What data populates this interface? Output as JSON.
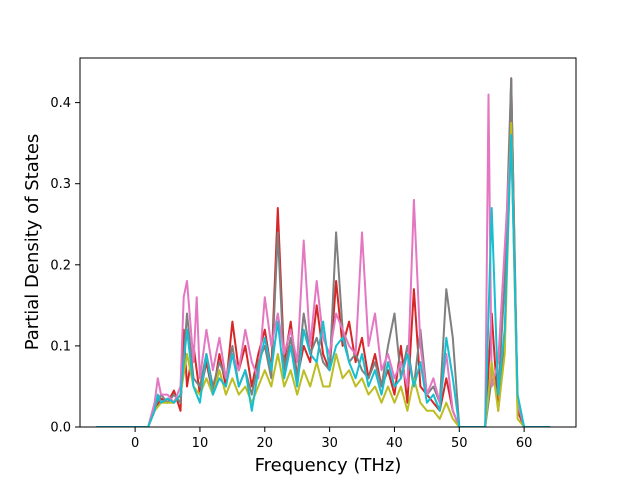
{
  "chart_data": {
    "type": "line",
    "title": "",
    "xlabel": "Frequency (THz)",
    "ylabel": "Partial Density of States",
    "xlim": [
      -8.5,
      68
    ],
    "ylim": [
      0,
      0.455
    ],
    "x_ticks": [
      0,
      10,
      20,
      30,
      40,
      50,
      60
    ],
    "y_ticks": [
      0.0,
      0.1,
      0.2,
      0.3,
      0.4
    ],
    "x_tick_labels": [
      "0",
      "10",
      "20",
      "30",
      "40",
      "50",
      "60"
    ],
    "y_tick_labels": [
      "0.0",
      "0.1",
      "0.2",
      "0.3",
      "0.4"
    ],
    "grid": false,
    "legend": null,
    "series": [
      {
        "color": "#d62728",
        "points": [
          [
            -6,
            0
          ],
          [
            2,
            0
          ],
          [
            3,
            0.02
          ],
          [
            4,
            0.035
          ],
          [
            5,
            0.03
          ],
          [
            6,
            0.045
          ],
          [
            7,
            0.02
          ],
          [
            7.5,
            0.12
          ],
          [
            8,
            0.05
          ],
          [
            9,
            0.1
          ],
          [
            10,
            0.04
          ],
          [
            11,
            0.08
          ],
          [
            12,
            0.04
          ],
          [
            13,
            0.09
          ],
          [
            14,
            0.05
          ],
          [
            15,
            0.13
          ],
          [
            16,
            0.07
          ],
          [
            17,
            0.1
          ],
          [
            18,
            0.05
          ],
          [
            19,
            0.09
          ],
          [
            20,
            0.12
          ],
          [
            21,
            0.07
          ],
          [
            22,
            0.27
          ],
          [
            23,
            0.08
          ],
          [
            24,
            0.13
          ],
          [
            25,
            0.06
          ],
          [
            26,
            0.1
          ],
          [
            27,
            0.08
          ],
          [
            28,
            0.15
          ],
          [
            29,
            0.09
          ],
          [
            30,
            0.07
          ],
          [
            31,
            0.18
          ],
          [
            32,
            0.1
          ],
          [
            33,
            0.13
          ],
          [
            34,
            0.08
          ],
          [
            35,
            0.11
          ],
          [
            36,
            0.06
          ],
          [
            37,
            0.09
          ],
          [
            38,
            0.05
          ],
          [
            39,
            0.07
          ],
          [
            40,
            0.04
          ],
          [
            41,
            0.1
          ],
          [
            42,
            0.03
          ],
          [
            43,
            0.17
          ],
          [
            44,
            0.05
          ],
          [
            45,
            0.04
          ],
          [
            46,
            0.03
          ],
          [
            47,
            0.02
          ],
          [
            48,
            0.06
          ],
          [
            49,
            0.02
          ],
          [
            50,
            0
          ],
          [
            54,
            0
          ],
          [
            55,
            0.14
          ],
          [
            56,
            0.02
          ],
          [
            57,
            0.1
          ],
          [
            58,
            0.43
          ],
          [
            59,
            0.02
          ],
          [
            60,
            0
          ],
          [
            64,
            0
          ]
        ]
      },
      {
        "color": "#7f7f7f",
        "points": [
          [
            -6,
            0
          ],
          [
            2,
            0
          ],
          [
            3,
            0.025
          ],
          [
            4,
            0.04
          ],
          [
            5,
            0.03
          ],
          [
            6,
            0.04
          ],
          [
            7,
            0.03
          ],
          [
            8,
            0.14
          ],
          [
            9,
            0.06
          ],
          [
            10,
            0.05
          ],
          [
            11,
            0.09
          ],
          [
            12,
            0.05
          ],
          [
            13,
            0.08
          ],
          [
            14,
            0.06
          ],
          [
            15,
            0.1
          ],
          [
            16,
            0.05
          ],
          [
            17,
            0.07
          ],
          [
            18,
            0.04
          ],
          [
            19,
            0.08
          ],
          [
            20,
            0.1
          ],
          [
            21,
            0.06
          ],
          [
            22,
            0.24
          ],
          [
            23,
            0.07
          ],
          [
            24,
            0.11
          ],
          [
            25,
            0.06
          ],
          [
            26,
            0.14
          ],
          [
            27,
            0.09
          ],
          [
            28,
            0.11
          ],
          [
            29,
            0.08
          ],
          [
            30,
            0.07
          ],
          [
            31,
            0.24
          ],
          [
            32,
            0.12
          ],
          [
            33,
            0.08
          ],
          [
            34,
            0.09
          ],
          [
            35,
            0.07
          ],
          [
            36,
            0.06
          ],
          [
            37,
            0.08
          ],
          [
            38,
            0.05
          ],
          [
            39,
            0.1
          ],
          [
            40,
            0.14
          ],
          [
            41,
            0.06
          ],
          [
            42,
            0.1
          ],
          [
            43,
            0.05
          ],
          [
            44,
            0.12
          ],
          [
            45,
            0.04
          ],
          [
            46,
            0.05
          ],
          [
            47,
            0.03
          ],
          [
            48,
            0.17
          ],
          [
            49,
            0.11
          ],
          [
            50,
            0
          ],
          [
            54,
            0
          ],
          [
            55,
            0.06
          ],
          [
            56,
            0.04
          ],
          [
            57,
            0.18
          ],
          [
            58,
            0.43
          ],
          [
            59,
            0.03
          ],
          [
            60,
            0
          ],
          [
            64,
            0
          ]
        ]
      },
      {
        "color": "#e377c2",
        "points": [
          [
            -6,
            0
          ],
          [
            2,
            0
          ],
          [
            3,
            0.03
          ],
          [
            3.5,
            0.06
          ],
          [
            4,
            0.04
          ],
          [
            5,
            0.04
          ],
          [
            6,
            0.03
          ],
          [
            7,
            0.05
          ],
          [
            7.5,
            0.16
          ],
          [
            8,
            0.18
          ],
          [
            9,
            0.08
          ],
          [
            9.5,
            0.16
          ],
          [
            10,
            0.06
          ],
          [
            11,
            0.12
          ],
          [
            12,
            0.07
          ],
          [
            13,
            0.11
          ],
          [
            14,
            0.06
          ],
          [
            15,
            0.09
          ],
          [
            16,
            0.07
          ],
          [
            17,
            0.12
          ],
          [
            18,
            0.08
          ],
          [
            19,
            0.06
          ],
          [
            20,
            0.16
          ],
          [
            21,
            0.1
          ],
          [
            22,
            0.14
          ],
          [
            23,
            0.09
          ],
          [
            24,
            0.12
          ],
          [
            25,
            0.08
          ],
          [
            26,
            0.23
          ],
          [
            27,
            0.1
          ],
          [
            28,
            0.18
          ],
          [
            29,
            0.11
          ],
          [
            30,
            0.09
          ],
          [
            31,
            0.14
          ],
          [
            32,
            0.12
          ],
          [
            33,
            0.1
          ],
          [
            34,
            0.09
          ],
          [
            35,
            0.24
          ],
          [
            36,
            0.1
          ],
          [
            37,
            0.14
          ],
          [
            38,
            0.07
          ],
          [
            39,
            0.09
          ],
          [
            40,
            0.06
          ],
          [
            41,
            0.08
          ],
          [
            42,
            0.05
          ],
          [
            43,
            0.28
          ],
          [
            44,
            0.1
          ],
          [
            45,
            0.04
          ],
          [
            46,
            0.06
          ],
          [
            47,
            0.03
          ],
          [
            48,
            0.09
          ],
          [
            49,
            0.02
          ],
          [
            50,
            0
          ],
          [
            54,
            0
          ],
          [
            54.5,
            0.41
          ],
          [
            55,
            0.05
          ],
          [
            56,
            0.08
          ],
          [
            57,
            0.22
          ],
          [
            58,
            0.36
          ],
          [
            59,
            0.03
          ],
          [
            60,
            0
          ],
          [
            64,
            0
          ]
        ]
      },
      {
        "color": "#bcbd22",
        "points": [
          [
            -6,
            0
          ],
          [
            2,
            0
          ],
          [
            3,
            0.02
          ],
          [
            4,
            0.03
          ],
          [
            5,
            0.03
          ],
          [
            6,
            0.03
          ],
          [
            7,
            0.04
          ],
          [
            8,
            0.09
          ],
          [
            9,
            0.05
          ],
          [
            10,
            0.04
          ],
          [
            11,
            0.06
          ],
          [
            12,
            0.04
          ],
          [
            13,
            0.07
          ],
          [
            14,
            0.04
          ],
          [
            15,
            0.06
          ],
          [
            16,
            0.04
          ],
          [
            17,
            0.05
          ],
          [
            18,
            0.03
          ],
          [
            19,
            0.05
          ],
          [
            20,
            0.07
          ],
          [
            21,
            0.05
          ],
          [
            22,
            0.09
          ],
          [
            23,
            0.05
          ],
          [
            24,
            0.07
          ],
          [
            25,
            0.04
          ],
          [
            26,
            0.07
          ],
          [
            27,
            0.05
          ],
          [
            28,
            0.08
          ],
          [
            29,
            0.05
          ],
          [
            30,
            0.05
          ],
          [
            31,
            0.09
          ],
          [
            32,
            0.06
          ],
          [
            33,
            0.07
          ],
          [
            34,
            0.05
          ],
          [
            35,
            0.06
          ],
          [
            36,
            0.04
          ],
          [
            37,
            0.05
          ],
          [
            38,
            0.03
          ],
          [
            39,
            0.05
          ],
          [
            40,
            0.03
          ],
          [
            41,
            0.05
          ],
          [
            42,
            0.02
          ],
          [
            43,
            0.06
          ],
          [
            44,
            0.03
          ],
          [
            45,
            0.02
          ],
          [
            46,
            0.02
          ],
          [
            47,
            0.01
          ],
          [
            48,
            0.03
          ],
          [
            49,
            0.01
          ],
          [
            50,
            0
          ],
          [
            54,
            0
          ],
          [
            55,
            0.08
          ],
          [
            56,
            0.02
          ],
          [
            57,
            0.09
          ],
          [
            58,
            0.375
          ],
          [
            59,
            0.01
          ],
          [
            60,
            0
          ],
          [
            64,
            0
          ]
        ]
      },
      {
        "color": "#17becf",
        "points": [
          [
            -6,
            0
          ],
          [
            2,
            0
          ],
          [
            3,
            0.02
          ],
          [
            3.5,
            0.04
          ],
          [
            4,
            0.03
          ],
          [
            5,
            0.035
          ],
          [
            6,
            0.03
          ],
          [
            7,
            0.04
          ],
          [
            8,
            0.12
          ],
          [
            9,
            0.05
          ],
          [
            10,
            0.03
          ],
          [
            11,
            0.09
          ],
          [
            12,
            0.04
          ],
          [
            13,
            0.06
          ],
          [
            14,
            0.05
          ],
          [
            15,
            0.09
          ],
          [
            16,
            0.05
          ],
          [
            17,
            0.07
          ],
          [
            18,
            0.02
          ],
          [
            19,
            0.07
          ],
          [
            20,
            0.11
          ],
          [
            21,
            0.07
          ],
          [
            22,
            0.13
          ],
          [
            23,
            0.06
          ],
          [
            24,
            0.1
          ],
          [
            25,
            0.05
          ],
          [
            26,
            0.12
          ],
          [
            27,
            0.09
          ],
          [
            28,
            0.08
          ],
          [
            29,
            0.13
          ],
          [
            30,
            0.07
          ],
          [
            31,
            0.1
          ],
          [
            32,
            0.11
          ],
          [
            33,
            0.08
          ],
          [
            34,
            0.06
          ],
          [
            35,
            0.09
          ],
          [
            36,
            0.05
          ],
          [
            37,
            0.07
          ],
          [
            38,
            0.04
          ],
          [
            39,
            0.08
          ],
          [
            40,
            0.05
          ],
          [
            41,
            0.06
          ],
          [
            42,
            0.09
          ],
          [
            43,
            0.05
          ],
          [
            44,
            0.08
          ],
          [
            45,
            0.03
          ],
          [
            46,
            0.04
          ],
          [
            47,
            0.02
          ],
          [
            48,
            0.11
          ],
          [
            49,
            0.06
          ],
          [
            50,
            0
          ],
          [
            54,
            0
          ],
          [
            55,
            0.27
          ],
          [
            56,
            0.04
          ],
          [
            57,
            0.12
          ],
          [
            58,
            0.36
          ],
          [
            59,
            0.04
          ],
          [
            60,
            0
          ],
          [
            64,
            0
          ]
        ]
      }
    ]
  }
}
